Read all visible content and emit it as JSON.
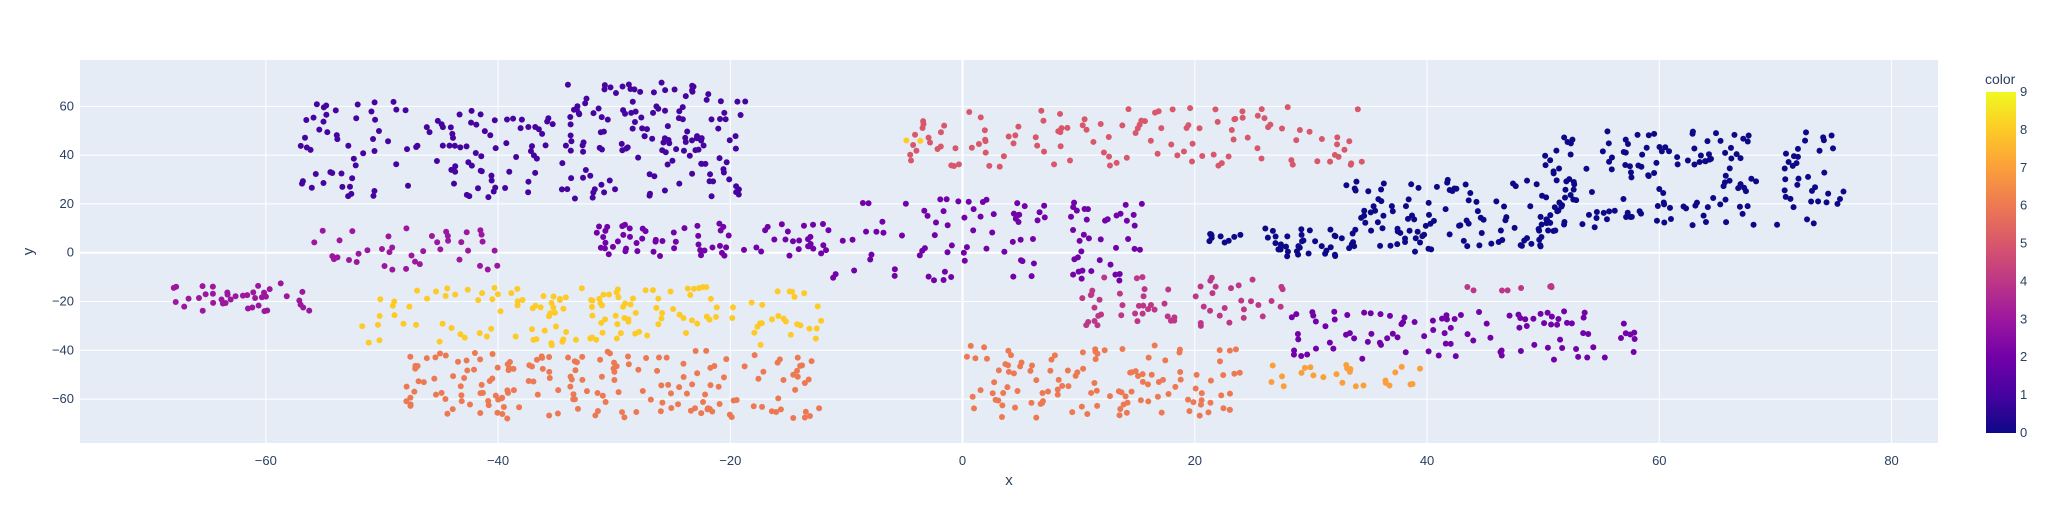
{
  "chart_data": {
    "type": "scatter",
    "title": "",
    "xlabel": "x",
    "ylabel": "y",
    "xlim": [
      -76,
      84
    ],
    "ylim": [
      -78,
      79
    ],
    "xticks": [
      -60,
      -40,
      -20,
      0,
      20,
      40,
      60,
      80
    ],
    "yticks": [
      -60,
      -40,
      -20,
      0,
      20,
      40,
      60
    ],
    "xtick_labels": [
      "−60",
      "−40",
      "−20",
      "0",
      "20",
      "40",
      "60",
      "80"
    ],
    "ytick_labels": [
      "−60",
      "−40",
      "−20",
      "0",
      "20",
      "40",
      "60"
    ],
    "grid": true,
    "colorbar": {
      "title": "color",
      "min": 0,
      "max": 9,
      "ticks": [
        0,
        1,
        2,
        3,
        4,
        5,
        6,
        7,
        8,
        9
      ],
      "tick_labels": [
        "0",
        "1",
        "2",
        "3",
        "4",
        "5",
        "6",
        "7",
        "8",
        "9"
      ],
      "colorscale": [
        "#0d0887",
        "#46039f",
        "#7201a8",
        "#9c179e",
        "#bd3786",
        "#d8576b",
        "#ed7953",
        "#fb9f3a",
        "#fdca26",
        "#f0f921"
      ]
    },
    "clusters": [
      {
        "color": 0,
        "x_range": [
          26,
          34
        ],
        "y_range": [
          -2,
          10
        ],
        "n": 40
      },
      {
        "color": 0,
        "x_range": [
          33,
          52
        ],
        "y_range": [
          0,
          30
        ],
        "n": 120
      },
      {
        "color": 0,
        "x_range": [
          50,
          76
        ],
        "y_range": [
          10,
          50
        ],
        "n": 170
      },
      {
        "color": 0,
        "x_range": [
          21,
          24
        ],
        "y_range": [
          4,
          8
        ],
        "n": 10
      },
      {
        "color": 1,
        "x_range": [
          -57,
          -18
        ],
        "y_range": [
          22,
          62
        ],
        "n": 200
      },
      {
        "color": 1,
        "x_range": [
          -34,
          -20
        ],
        "y_range": [
          42,
          70
        ],
        "n": 60
      },
      {
        "color": 2,
        "x_range": [
          -32,
          -12
        ],
        "y_range": [
          -2,
          12
        ],
        "n": 70
      },
      {
        "color": 2,
        "x_range": [
          -12,
          16
        ],
        "y_range": [
          -12,
          22
        ],
        "n": 110
      },
      {
        "color": 2,
        "x_range": [
          28,
          58
        ],
        "y_range": [
          -44,
          -24
        ],
        "n": 100
      },
      {
        "color": 3,
        "x_range": [
          -68,
          -56
        ],
        "y_range": [
          -24,
          -12
        ],
        "n": 40
      },
      {
        "color": 3,
        "x_range": [
          -56,
          -40
        ],
        "y_range": [
          -8,
          10
        ],
        "n": 40
      },
      {
        "color": 4,
        "x_range": [
          10,
          28
        ],
        "y_range": [
          -30,
          -10
        ],
        "n": 60
      },
      {
        "color": 4,
        "x_range": [
          43,
          52
        ],
        "y_range": [
          -16,
          -12
        ],
        "n": 8
      },
      {
        "color": 5,
        "x_range": [
          -5,
          35
        ],
        "y_range": [
          35,
          60
        ],
        "n": 120
      },
      {
        "color": 6,
        "x_range": [
          -48,
          -12
        ],
        "y_range": [
          -68,
          -40
        ],
        "n": 180
      },
      {
        "color": 6,
        "x_range": [
          0,
          24
        ],
        "y_range": [
          -68,
          -38
        ],
        "n": 120
      },
      {
        "color": 7,
        "x_range": [
          26,
          40
        ],
        "y_range": [
          -56,
          -46
        ],
        "n": 25
      },
      {
        "color": 8,
        "x_range": [
          -52,
          -12
        ],
        "y_range": [
          -38,
          -14
        ],
        "n": 150
      },
      {
        "color": 8,
        "x_range": [
          -5,
          -3
        ],
        "y_range": [
          44,
          46
        ],
        "n": 2
      }
    ]
  }
}
